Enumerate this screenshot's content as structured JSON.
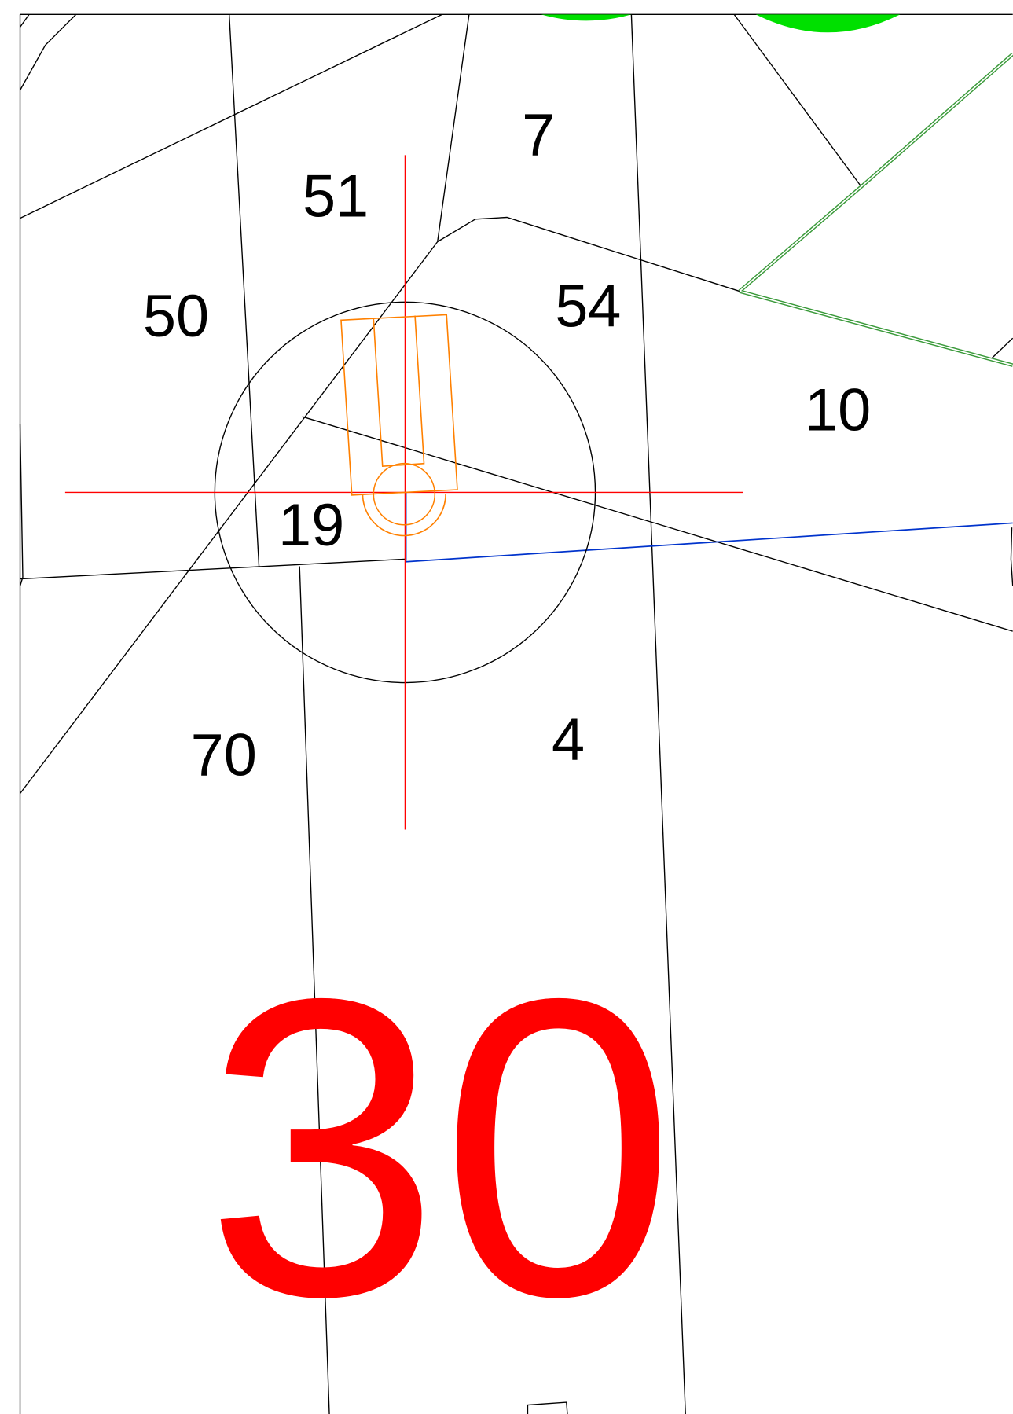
{
  "parcels": [
    {
      "label": "7"
    },
    {
      "label": "51"
    },
    {
      "label": "50"
    },
    {
      "label": "54"
    },
    {
      "label": "10"
    },
    {
      "label": "19"
    },
    {
      "label": "70"
    },
    {
      "label": "4"
    }
  ],
  "zone_label": "30"
}
